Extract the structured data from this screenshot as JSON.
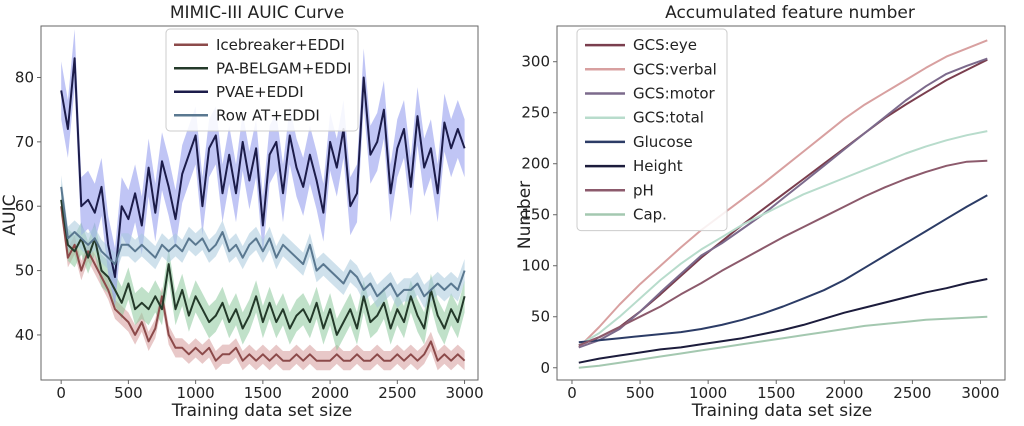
{
  "chart_data": [
    {
      "type": "line",
      "title": "MIMIC-III AUIC Curve",
      "xlabel": "Training data set size",
      "ylabel": "AUIC",
      "xlim": [
        -150,
        3100
      ],
      "ylim": [
        33,
        88
      ],
      "xticks": [
        0,
        500,
        1000,
        1500,
        2000,
        2500,
        3000
      ],
      "yticks": [
        40,
        50,
        60,
        70,
        80
      ],
      "grid": false,
      "legend_position": "top-center",
      "x": [
        0,
        50,
        100,
        150,
        200,
        250,
        300,
        350,
        400,
        450,
        500,
        550,
        600,
        650,
        700,
        750,
        800,
        850,
        900,
        950,
        1000,
        1050,
        1100,
        1150,
        1200,
        1250,
        1300,
        1350,
        1400,
        1450,
        1500,
        1550,
        1600,
        1650,
        1700,
        1750,
        1800,
        1850,
        1900,
        1950,
        2000,
        2050,
        2100,
        2150,
        2200,
        2250,
        2300,
        2350,
        2400,
        2450,
        2500,
        2550,
        2600,
        2650,
        2700,
        2750,
        2800,
        2850,
        2900,
        2950,
        3000
      ],
      "series": [
        {
          "name": "Icebreaker+EDDI",
          "color": "#8c4a4a",
          "band": "#d69a9a",
          "band_width": 1.5,
          "values": [
            60,
            52,
            54,
            50,
            53,
            51,
            49,
            47,
            44,
            43,
            42,
            40,
            42,
            39,
            41,
            46,
            40,
            38,
            38,
            37,
            38,
            37,
            38,
            36,
            37,
            37,
            38,
            36,
            37,
            36,
            37,
            36,
            37,
            36,
            36,
            37,
            36,
            37,
            36,
            36,
            36,
            37,
            36,
            36,
            37,
            36,
            36,
            37,
            36,
            36,
            37,
            36,
            37,
            36,
            37,
            39,
            36,
            37,
            36,
            37,
            36
          ]
        },
        {
          "name": "PA-BELGAM+EDDI",
          "color": "#243a2a",
          "band": "#8cc89c",
          "band_width": 2.5,
          "values": [
            61,
            54,
            53,
            55,
            52,
            55,
            50,
            49,
            47,
            45,
            48,
            44,
            45,
            44,
            46,
            44,
            51,
            44,
            47,
            43,
            46,
            44,
            42,
            43,
            45,
            42,
            44,
            41,
            43,
            46,
            42,
            45,
            42,
            44,
            41,
            43,
            44,
            42,
            45,
            41,
            44,
            40,
            42,
            44,
            41,
            46,
            42,
            43,
            45,
            41,
            44,
            42,
            46,
            43,
            41,
            47,
            43,
            41,
            44,
            42,
            46
          ]
        },
        {
          "name": "PVAE+EDDI",
          "color": "#1c1c4a",
          "band": "#8c96ec",
          "band_width": 4.5,
          "values": [
            78,
            72,
            83,
            60,
            61,
            59,
            63,
            54,
            49,
            60,
            58,
            62,
            57,
            66,
            59,
            67,
            63,
            58,
            65,
            68,
            71,
            60,
            69,
            71,
            62,
            68,
            62,
            70,
            64,
            69,
            57,
            68,
            70,
            62,
            71,
            66,
            63,
            68,
            64,
            59,
            70,
            66,
            72,
            60,
            62,
            80,
            68,
            70,
            75,
            62,
            69,
            72,
            63,
            74,
            66,
            69,
            62,
            73,
            69,
            72,
            69
          ]
        },
        {
          "name": "Row AT+EDDI",
          "color": "#5a7890",
          "band": "#a8c8dc",
          "band_width": 1.8,
          "values": [
            63,
            55,
            56,
            55,
            54,
            55,
            53,
            52,
            51,
            54,
            54,
            53,
            54,
            53,
            52,
            54,
            53,
            54,
            53,
            55,
            54,
            55,
            53,
            54,
            56,
            53,
            54,
            52,
            54,
            55,
            53,
            55,
            52,
            54,
            53,
            52,
            51,
            54,
            50,
            51,
            50,
            49,
            48,
            50,
            49,
            47,
            48,
            46,
            47,
            48,
            46,
            47,
            47,
            48,
            46,
            47,
            48,
            47,
            48,
            47,
            50
          ]
        }
      ]
    },
    {
      "type": "line",
      "title": "Accumulated feature number",
      "xlabel": "Training data set size",
      "ylabel": "Number",
      "xlim": [
        -110,
        3180
      ],
      "ylim": [
        -12,
        335
      ],
      "xticks": [
        0,
        500,
        1000,
        1500,
        2000,
        2500,
        3000
      ],
      "yticks": [
        0,
        50,
        100,
        150,
        200,
        250,
        300
      ],
      "grid": false,
      "legend_position": "top-left",
      "x": [
        50,
        200,
        350,
        500,
        650,
        800,
        950,
        1100,
        1250,
        1400,
        1550,
        1700,
        1850,
        2000,
        2150,
        2300,
        2450,
        2600,
        2750,
        2900,
        3050
      ],
      "series": [
        {
          "name": "GCS:eye",
          "color": "#7a3e4e",
          "values": [
            22,
            30,
            40,
            55,
            72,
            90,
            108,
            124,
            140,
            155,
            170,
            185,
            200,
            215,
            230,
            245,
            258,
            270,
            282,
            292,
            302
          ]
        },
        {
          "name": "GCS:verbal",
          "color": "#d8a0a0",
          "values": [
            20,
            40,
            62,
            82,
            100,
            118,
            135,
            150,
            165,
            180,
            196,
            212,
            228,
            244,
            258,
            270,
            282,
            294,
            305,
            313,
            321
          ]
        },
        {
          "name": "GCS:motor",
          "color": "#7c6a8c",
          "values": [
            20,
            27,
            38,
            55,
            74,
            92,
            110,
            122,
            136,
            150,
            166,
            182,
            198,
            214,
            230,
            246,
            262,
            276,
            288,
            296,
            303
          ]
        },
        {
          "name": "GCS:total",
          "color": "#b8dccc",
          "values": [
            22,
            34,
            50,
            68,
            86,
            102,
            116,
            128,
            140,
            150,
            160,
            170,
            178,
            186,
            194,
            202,
            210,
            217,
            223,
            228,
            232
          ]
        },
        {
          "name": "Glucose",
          "color": "#2c3c66",
          "values": [
            25,
            27,
            29,
            31,
            33,
            35,
            38,
            42,
            47,
            53,
            60,
            68,
            76,
            86,
            98,
            110,
            122,
            134,
            146,
            158,
            169
          ]
        },
        {
          "name": "Height",
          "color": "#1c1c3c",
          "values": [
            5,
            9,
            12,
            15,
            18,
            20,
            23,
            26,
            29,
            33,
            37,
            42,
            48,
            54,
            59,
            64,
            69,
            74,
            78,
            83,
            87
          ]
        },
        {
          "name": "pH",
          "color": "#8c5a6c",
          "values": [
            22,
            30,
            40,
            50,
            60,
            72,
            83,
            95,
            106,
            117,
            128,
            138,
            148,
            158,
            168,
            177,
            185,
            192,
            198,
            202,
            203
          ]
        },
        {
          "name": "Cap.",
          "color": "#a4c8b0",
          "values": [
            0,
            2,
            5,
            8,
            11,
            14,
            17,
            20,
            23,
            26,
            29,
            32,
            35,
            38,
            41,
            43,
            45,
            47,
            48,
            49,
            50
          ]
        }
      ]
    }
  ]
}
